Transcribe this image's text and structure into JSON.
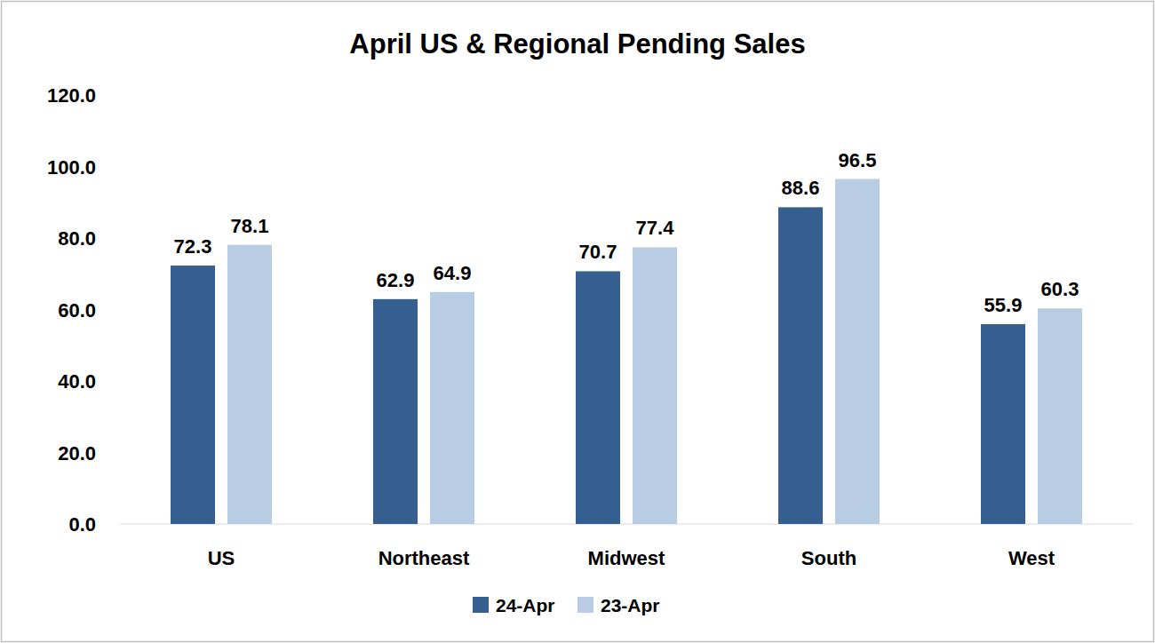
{
  "chart_data": {
    "type": "bar",
    "title": "April US & Regional Pending Sales",
    "categories": [
      "US",
      "Northeast",
      "Midwest",
      "South",
      "West"
    ],
    "series": [
      {
        "name": "24-Apr",
        "color": "#355f91",
        "values": [
          72.3,
          62.9,
          70.7,
          88.6,
          55.9
        ]
      },
      {
        "name": "23-Apr",
        "color": "#b8cce4",
        "values": [
          78.1,
          64.9,
          77.4,
          96.5,
          60.3
        ]
      }
    ],
    "ylim": [
      0,
      120
    ],
    "yticks": [
      {
        "value": 0,
        "label": "0.0"
      },
      {
        "value": 20,
        "label": "20.0"
      },
      {
        "value": 40,
        "label": "40.0"
      },
      {
        "value": 60,
        "label": "60.0"
      },
      {
        "value": 80,
        "label": "80.0"
      },
      {
        "value": 100,
        "label": "100.0"
      },
      {
        "value": 120,
        "label": "120.0"
      }
    ],
    "grid": false,
    "legend": "bottom",
    "data_labels": true
  }
}
